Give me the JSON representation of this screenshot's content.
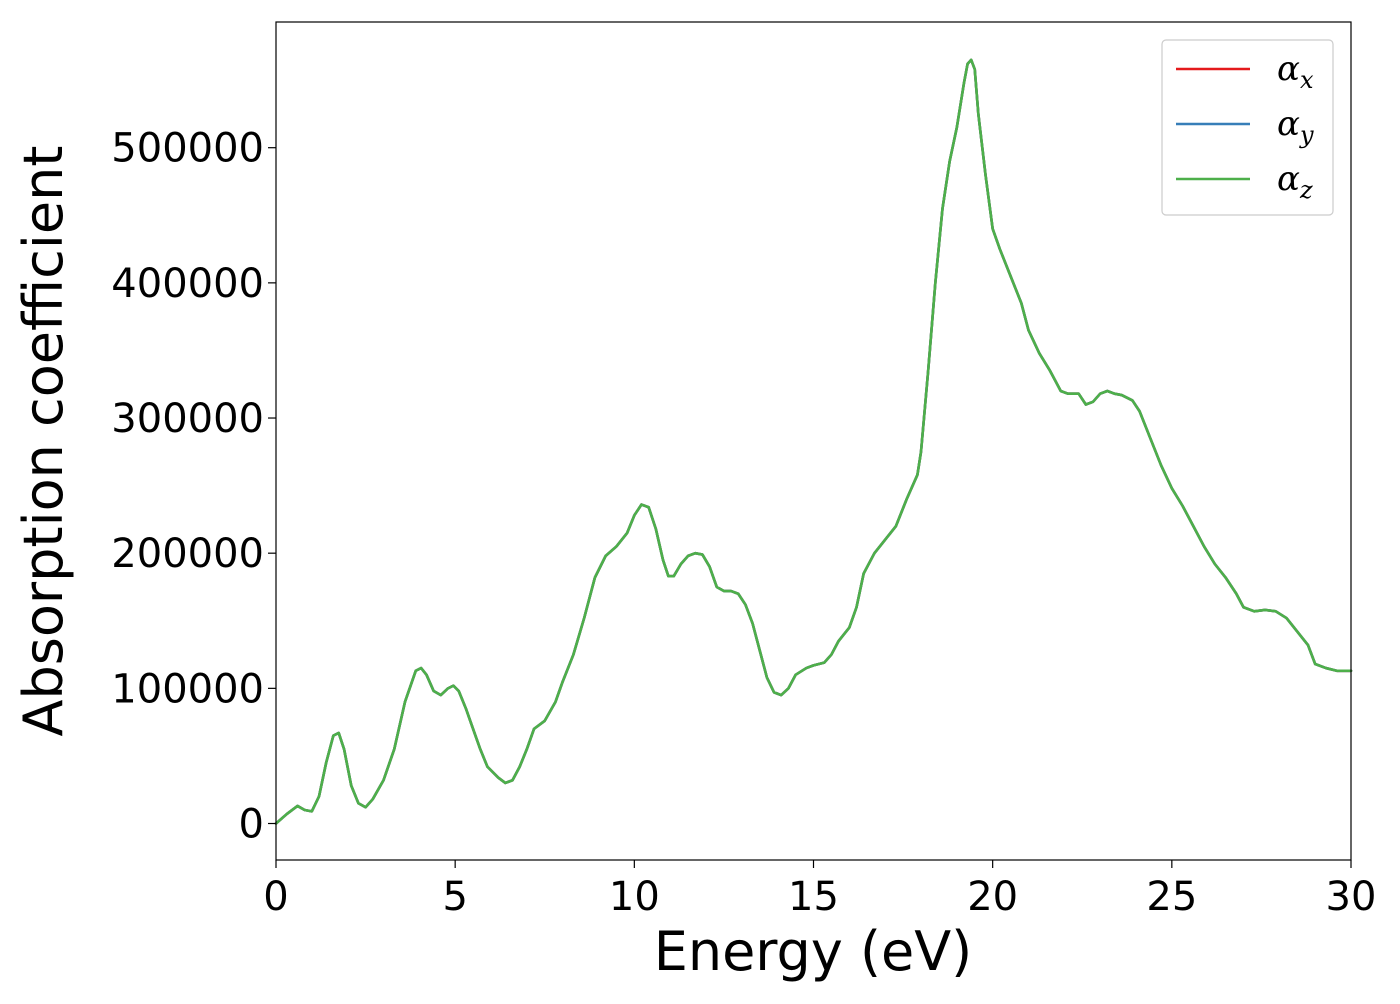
{
  "chart_data": {
    "type": "line",
    "xlabel": "Energy (eV)",
    "ylabel": "Absorption coefficient",
    "xlim": [
      0,
      30
    ],
    "ylim": [
      -27000,
      593000
    ],
    "x_ticks": [
      0,
      5,
      10,
      15,
      20,
      25,
      30
    ],
    "x_tick_labels": [
      "0",
      "5",
      "10",
      "15",
      "20",
      "25",
      "30"
    ],
    "y_ticks": [
      0,
      100000,
      200000,
      300000,
      400000,
      500000
    ],
    "y_tick_labels": [
      "0",
      "100000",
      "200000",
      "300000",
      "400000",
      "500000"
    ],
    "grid": false,
    "legend": {
      "placement": "top-right",
      "entries": [
        {
          "symbol": "α",
          "subscript": "x",
          "color": "#e41a1c"
        },
        {
          "symbol": "α",
          "subscript": "y",
          "color": "#377eb8"
        },
        {
          "symbol": "α",
          "subscript": "z",
          "color": "#4daf4a"
        }
      ]
    },
    "series": [
      {
        "color": "#e41a1c",
        "x": [
          0,
          0.3,
          0.6,
          0.8,
          1.0,
          1.2,
          1.4,
          1.6,
          1.75,
          1.9,
          2.1,
          2.3,
          2.5,
          2.7,
          3.0,
          3.3,
          3.6,
          3.9,
          4.05,
          4.2,
          4.4,
          4.6,
          4.8,
          4.95,
          5.1,
          5.3,
          5.5,
          5.7,
          5.9,
          6.2,
          6.4,
          6.6,
          6.8,
          7.0,
          7.2,
          7.5,
          7.8,
          8.0,
          8.3,
          8.6,
          8.9,
          9.2,
          9.5,
          9.8,
          10.0,
          10.2,
          10.4,
          10.6,
          10.8,
          10.95,
          11.1,
          11.3,
          11.5,
          11.7,
          11.9,
          12.1,
          12.3,
          12.5,
          12.7,
          12.9,
          13.1,
          13.3,
          13.5,
          13.7,
          13.9,
          14.1,
          14.3,
          14.5,
          14.8,
          15.0,
          15.3,
          15.5,
          15.7,
          16.0,
          16.2,
          16.4,
          16.7,
          17.0,
          17.3,
          17.6,
          17.9,
          18.0,
          18.2,
          18.4,
          18.6,
          18.8,
          19.0,
          19.2,
          19.3,
          19.4,
          19.5,
          19.6,
          19.8,
          20.0,
          20.2,
          20.5,
          20.8,
          21.0,
          21.3,
          21.6,
          21.9,
          22.1,
          22.4,
          22.6,
          22.8,
          23.0,
          23.2,
          23.4,
          23.6,
          23.9,
          24.1,
          24.4,
          24.7,
          25.0,
          25.3,
          25.6,
          25.9,
          26.2,
          26.5,
          26.8,
          27.0,
          27.3,
          27.6,
          27.9,
          28.2,
          28.5,
          28.8,
          29.0,
          29.3,
          29.6,
          30.0
        ],
        "y": [
          0,
          7000,
          13000,
          10000,
          9000,
          20000,
          45000,
          65000,
          67000,
          55000,
          28000,
          15000,
          12000,
          18000,
          32000,
          55000,
          90000,
          113000,
          115000,
          110000,
          98000,
          95000,
          100000,
          102000,
          98000,
          85000,
          70000,
          55000,
          42000,
          34000,
          30000,
          32000,
          42000,
          55000,
          70000,
          76000,
          90000,
          105000,
          125000,
          152000,
          182000,
          198000,
          205000,
          215000,
          228000,
          236000,
          234000,
          218000,
          195000,
          183000,
          183000,
          192000,
          198000,
          200000,
          199000,
          190000,
          175000,
          172000,
          172000,
          170000,
          162000,
          148000,
          128000,
          108000,
          97000,
          95000,
          100000,
          110000,
          115000,
          117000,
          119000,
          125000,
          135000,
          145000,
          160000,
          185000,
          200000,
          210000,
          220000,
          240000,
          258000,
          275000,
          335000,
          400000,
          455000,
          490000,
          515000,
          548000,
          562000,
          565000,
          558000,
          525000,
          480000,
          440000,
          425000,
          405000,
          385000,
          365000,
          348000,
          335000,
          320000,
          318000,
          318000,
          310000,
          312000,
          318000,
          320000,
          318000,
          317000,
          313000,
          305000,
          285000,
          265000,
          248000,
          235000,
          220000,
          205000,
          192000,
          182000,
          170000,
          160000,
          157000,
          158000,
          157000,
          152000,
          142000,
          132000,
          118000,
          115000,
          113000,
          113000
        ]
      },
      {
        "color": "#377eb8",
        "x": [
          0,
          0.3,
          0.6,
          0.8,
          1.0,
          1.2,
          1.4,
          1.6,
          1.75,
          1.9,
          2.1,
          2.3,
          2.5,
          2.7,
          3.0,
          3.3,
          3.6,
          3.9,
          4.05,
          4.2,
          4.4,
          4.6,
          4.8,
          4.95,
          5.1,
          5.3,
          5.5,
          5.7,
          5.9,
          6.2,
          6.4,
          6.6,
          6.8,
          7.0,
          7.2,
          7.5,
          7.8,
          8.0,
          8.3,
          8.6,
          8.9,
          9.2,
          9.5,
          9.8,
          10.0,
          10.2,
          10.4,
          10.6,
          10.8,
          10.95,
          11.1,
          11.3,
          11.5,
          11.7,
          11.9,
          12.1,
          12.3,
          12.5,
          12.7,
          12.9,
          13.1,
          13.3,
          13.5,
          13.7,
          13.9,
          14.1,
          14.3,
          14.5,
          14.8,
          15.0,
          15.3,
          15.5,
          15.7,
          16.0,
          16.2,
          16.4,
          16.7,
          17.0,
          17.3,
          17.6,
          17.9,
          18.0,
          18.2,
          18.4,
          18.6,
          18.8,
          19.0,
          19.2,
          19.3,
          19.4,
          19.5,
          19.6,
          19.8,
          20.0,
          20.2,
          20.5,
          20.8,
          21.0,
          21.3,
          21.6,
          21.9,
          22.1,
          22.4,
          22.6,
          22.8,
          23.0,
          23.2,
          23.4,
          23.6,
          23.9,
          24.1,
          24.4,
          24.7,
          25.0,
          25.3,
          25.6,
          25.9,
          26.2,
          26.5,
          26.8,
          27.0,
          27.3,
          27.6,
          27.9,
          28.2,
          28.5,
          28.8,
          29.0,
          29.3,
          29.6,
          30.0
        ],
        "y": [
          0,
          7000,
          13000,
          10000,
          9000,
          20000,
          45000,
          65000,
          67000,
          55000,
          28000,
          15000,
          12000,
          18000,
          32000,
          55000,
          90000,
          113000,
          115000,
          110000,
          98000,
          95000,
          100000,
          102000,
          98000,
          85000,
          70000,
          55000,
          42000,
          34000,
          30000,
          32000,
          42000,
          55000,
          70000,
          76000,
          90000,
          105000,
          125000,
          152000,
          182000,
          198000,
          205000,
          215000,
          228000,
          236000,
          234000,
          218000,
          195000,
          183000,
          183000,
          192000,
          198000,
          200000,
          199000,
          190000,
          175000,
          172000,
          172000,
          170000,
          162000,
          148000,
          128000,
          108000,
          97000,
          95000,
          100000,
          110000,
          115000,
          117000,
          119000,
          125000,
          135000,
          145000,
          160000,
          185000,
          200000,
          210000,
          220000,
          240000,
          258000,
          275000,
          335000,
          400000,
          455000,
          490000,
          515000,
          548000,
          562000,
          565000,
          558000,
          525000,
          480000,
          440000,
          425000,
          405000,
          385000,
          365000,
          348000,
          335000,
          320000,
          318000,
          318000,
          310000,
          312000,
          318000,
          320000,
          318000,
          317000,
          313000,
          305000,
          285000,
          265000,
          248000,
          235000,
          220000,
          205000,
          192000,
          182000,
          170000,
          160000,
          157000,
          158000,
          157000,
          152000,
          142000,
          132000,
          118000,
          115000,
          113000,
          113000
        ]
      },
      {
        "color": "#4daf4a",
        "x": [
          0,
          0.3,
          0.6,
          0.8,
          1.0,
          1.2,
          1.4,
          1.6,
          1.75,
          1.9,
          2.1,
          2.3,
          2.5,
          2.7,
          3.0,
          3.3,
          3.6,
          3.9,
          4.05,
          4.2,
          4.4,
          4.6,
          4.8,
          4.95,
          5.1,
          5.3,
          5.5,
          5.7,
          5.9,
          6.2,
          6.4,
          6.6,
          6.8,
          7.0,
          7.2,
          7.5,
          7.8,
          8.0,
          8.3,
          8.6,
          8.9,
          9.2,
          9.5,
          9.8,
          10.0,
          10.2,
          10.4,
          10.6,
          10.8,
          10.95,
          11.1,
          11.3,
          11.5,
          11.7,
          11.9,
          12.1,
          12.3,
          12.5,
          12.7,
          12.9,
          13.1,
          13.3,
          13.5,
          13.7,
          13.9,
          14.1,
          14.3,
          14.5,
          14.8,
          15.0,
          15.3,
          15.5,
          15.7,
          16.0,
          16.2,
          16.4,
          16.7,
          17.0,
          17.3,
          17.6,
          17.9,
          18.0,
          18.2,
          18.4,
          18.6,
          18.8,
          19.0,
          19.2,
          19.3,
          19.4,
          19.5,
          19.6,
          19.8,
          20.0,
          20.2,
          20.5,
          20.8,
          21.0,
          21.3,
          21.6,
          21.9,
          22.1,
          22.4,
          22.6,
          22.8,
          23.0,
          23.2,
          23.4,
          23.6,
          23.9,
          24.1,
          24.4,
          24.7,
          25.0,
          25.3,
          25.6,
          25.9,
          26.2,
          26.5,
          26.8,
          27.0,
          27.3,
          27.6,
          27.9,
          28.2,
          28.5,
          28.8,
          29.0,
          29.3,
          29.6,
          30.0
        ],
        "y": [
          0,
          7000,
          13000,
          10000,
          9000,
          20000,
          45000,
          65000,
          67000,
          55000,
          28000,
          15000,
          12000,
          18000,
          32000,
          55000,
          90000,
          113000,
          115000,
          110000,
          98000,
          95000,
          100000,
          102000,
          98000,
          85000,
          70000,
          55000,
          42000,
          34000,
          30000,
          32000,
          42000,
          55000,
          70000,
          76000,
          90000,
          105000,
          125000,
          152000,
          182000,
          198000,
          205000,
          215000,
          228000,
          236000,
          234000,
          218000,
          195000,
          183000,
          183000,
          192000,
          198000,
          200000,
          199000,
          190000,
          175000,
          172000,
          172000,
          170000,
          162000,
          148000,
          128000,
          108000,
          97000,
          95000,
          100000,
          110000,
          115000,
          117000,
          119000,
          125000,
          135000,
          145000,
          160000,
          185000,
          200000,
          210000,
          220000,
          240000,
          258000,
          275000,
          335000,
          400000,
          455000,
          490000,
          515000,
          548000,
          562000,
          565000,
          558000,
          525000,
          480000,
          440000,
          425000,
          405000,
          385000,
          365000,
          348000,
          335000,
          320000,
          318000,
          318000,
          310000,
          312000,
          318000,
          320000,
          318000,
          317000,
          313000,
          305000,
          285000,
          265000,
          248000,
          235000,
          220000,
          205000,
          192000,
          182000,
          170000,
          160000,
          157000,
          158000,
          157000,
          152000,
          142000,
          132000,
          118000,
          115000,
          113000,
          113000
        ]
      }
    ]
  }
}
